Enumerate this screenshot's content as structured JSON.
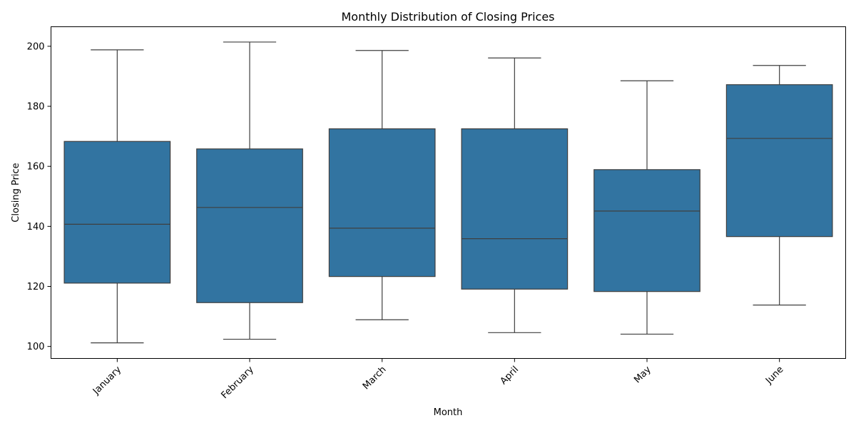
{
  "chart_data": {
    "type": "box",
    "title": "Monthly Distribution of Closing Prices",
    "xlabel": "Month",
    "ylabel": "Closing Price",
    "ylim": [
      96,
      206.5
    ],
    "yticks": [
      100,
      120,
      140,
      160,
      180,
      200
    ],
    "grid": false,
    "legend": "none",
    "box_color": "#3274a1",
    "line_color": "#3f3f3f",
    "categories": [
      "January",
      "February",
      "March",
      "April",
      "May",
      "June"
    ],
    "series": [
      {
        "stats": [
          {
            "whislo": 101.2,
            "q1": 121.1,
            "med": 140.7,
            "q3": 168.3,
            "whishi": 198.8
          },
          {
            "whislo": 102.4,
            "q1": 114.6,
            "med": 146.3,
            "q3": 165.8,
            "whishi": 201.4
          },
          {
            "whislo": 108.9,
            "q1": 123.3,
            "med": 139.4,
            "q3": 172.5,
            "whishi": 198.6
          },
          {
            "whislo": 104.6,
            "q1": 119.1,
            "med": 135.9,
            "q3": 172.5,
            "whishi": 196.1
          },
          {
            "whislo": 104.1,
            "q1": 118.3,
            "med": 145.1,
            "q3": 158.9,
            "whishi": 188.5
          },
          {
            "whislo": 113.8,
            "q1": 136.6,
            "med": 169.3,
            "q3": 187.2,
            "whishi": 193.6
          }
        ]
      }
    ]
  }
}
